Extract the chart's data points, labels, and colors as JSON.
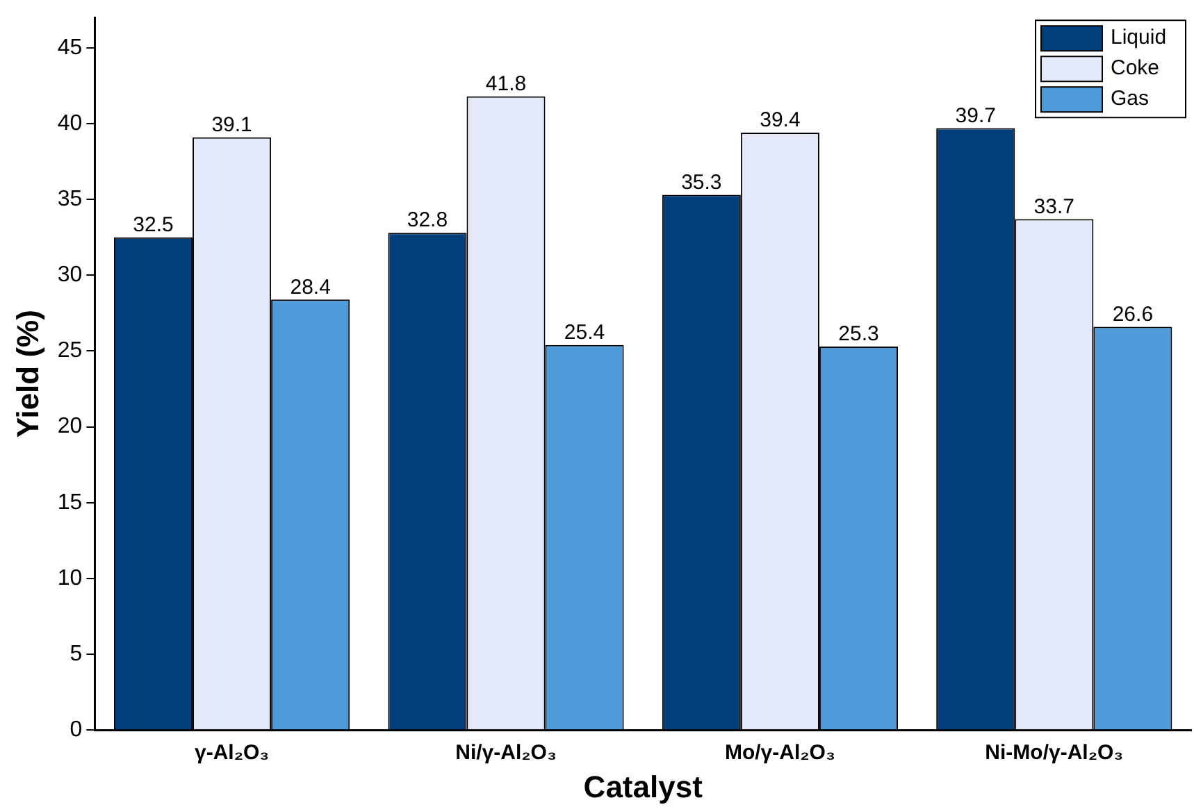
{
  "chart_data": {
    "type": "bar",
    "xlabel": "Catalyst",
    "ylabel": "Yield (%)",
    "categories": [
      "γ-Al₂O₃",
      "Ni/γ-Al₂O₃",
      "Mo/γ-Al₂O₃",
      "Ni-Mo/γ-Al₂O₃"
    ],
    "series": [
      {
        "name": "Liquid",
        "color": "#003f7a",
        "values": [
          32.5,
          32.8,
          35.3,
          39.7
        ]
      },
      {
        "name": "Coke",
        "color": "#e3e9f8",
        "values": [
          39.1,
          41.8,
          39.4,
          33.7
        ]
      },
      {
        "name": "Gas",
        "color": "#4f9bd9",
        "values": [
          28.4,
          25.4,
          25.3,
          26.6
        ]
      }
    ],
    "ylim": [
      0,
      47
    ],
    "yticks": [
      0,
      5,
      10,
      15,
      20,
      25,
      30,
      35,
      40,
      45
    ],
    "data_labels": true,
    "legend": "top right",
    "grid": false
  }
}
